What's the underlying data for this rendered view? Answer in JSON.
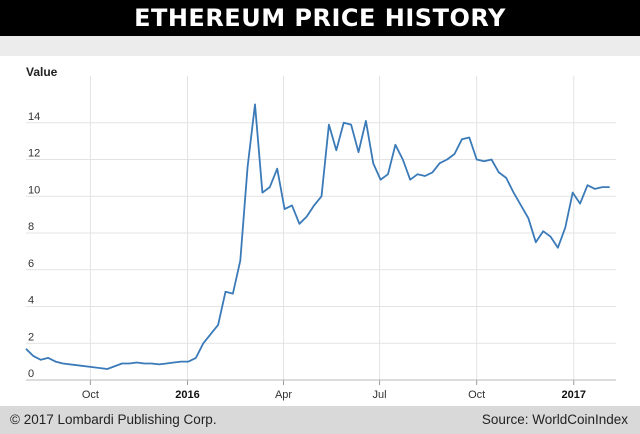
{
  "header": {
    "title": "ETHEREUM PRICE HISTORY"
  },
  "footer": {
    "copyright": "© 2017 Lombardi Publishing Corp.",
    "source": "Source: WorldCoinIndex"
  },
  "chart_data": {
    "type": "line",
    "title": "ETHEREUM PRICE HISTORY",
    "xlabel": "",
    "ylabel": "Value",
    "ylim": [
      0,
      16
    ],
    "xlim": [
      "2015-08-01",
      "2017-02-10"
    ],
    "y_ticks": [
      0,
      2,
      4,
      6,
      8,
      10,
      12,
      14
    ],
    "x_ticks": [
      {
        "label": "Oct",
        "date": "2015-10-01",
        "bold": false
      },
      {
        "label": "2016",
        "date": "2016-01-01",
        "bold": true
      },
      {
        "label": "Apr",
        "date": "2016-04-01",
        "bold": false
      },
      {
        "label": "Jul",
        "date": "2016-07-01",
        "bold": false
      },
      {
        "label": "Oct",
        "date": "2016-10-01",
        "bold": false
      },
      {
        "label": "2017",
        "date": "2017-01-01",
        "bold": true
      }
    ],
    "grid": true,
    "line_color": "#3a7ab8",
    "series": [
      {
        "name": "",
        "x": [
          "2015-08-01",
          "2015-08-08",
          "2015-08-15",
          "2015-08-22",
          "2015-08-29",
          "2015-09-05",
          "2015-09-19",
          "2015-10-03",
          "2015-10-17",
          "2015-10-31",
          "2015-11-07",
          "2015-11-14",
          "2015-11-21",
          "2015-11-28",
          "2015-12-05",
          "2015-12-12",
          "2015-12-19",
          "2015-12-26",
          "2016-01-02",
          "2016-01-09",
          "2016-01-16",
          "2016-01-23",
          "2016-01-30",
          "2016-02-06",
          "2016-02-13",
          "2016-02-20",
          "2016-02-27",
          "2016-03-05",
          "2016-03-12",
          "2016-03-19",
          "2016-03-26",
          "2016-04-02",
          "2016-04-09",
          "2016-04-16",
          "2016-04-23",
          "2016-04-30",
          "2016-05-07",
          "2016-05-14",
          "2016-05-21",
          "2016-05-28",
          "2016-06-04",
          "2016-06-11",
          "2016-06-18",
          "2016-06-25",
          "2016-07-02",
          "2016-07-09",
          "2016-07-16",
          "2016-07-23",
          "2016-07-30",
          "2016-08-06",
          "2016-08-13",
          "2016-08-20",
          "2016-08-27",
          "2016-09-03",
          "2016-09-10",
          "2016-09-17",
          "2016-09-24",
          "2016-10-01",
          "2016-10-08",
          "2016-10-15",
          "2016-10-22",
          "2016-10-29",
          "2016-11-05",
          "2016-11-12",
          "2016-11-19",
          "2016-11-26",
          "2016-12-03",
          "2016-12-10",
          "2016-12-17",
          "2016-12-24",
          "2016-12-31",
          "2017-01-07",
          "2017-01-14",
          "2017-01-21",
          "2017-01-28",
          "2017-02-04"
        ],
        "y": [
          1.7,
          1.3,
          1.1,
          1.2,
          1.0,
          0.9,
          0.8,
          0.7,
          0.6,
          0.9,
          0.9,
          0.95,
          0.9,
          0.9,
          0.85,
          0.9,
          0.95,
          1.0,
          1.0,
          1.2,
          2.0,
          2.5,
          3.0,
          4.8,
          4.7,
          6.5,
          11.6,
          15.0,
          10.2,
          10.5,
          11.5,
          9.3,
          9.5,
          8.5,
          8.9,
          9.5,
          10.0,
          13.9,
          12.5,
          14.0,
          13.9,
          12.4,
          14.1,
          11.8,
          10.9,
          11.2,
          12.8,
          12.0,
          10.9,
          11.2,
          11.1,
          11.3,
          11.8,
          12.0,
          12.3,
          13.1,
          13.2,
          12.0,
          11.9,
          12.0,
          11.3,
          11.0,
          10.2,
          9.5,
          8.8,
          7.5,
          8.1,
          7.8,
          7.2,
          8.3,
          10.2,
          9.6,
          10.6,
          10.4,
          10.5,
          10.5
        ]
      }
    ]
  }
}
